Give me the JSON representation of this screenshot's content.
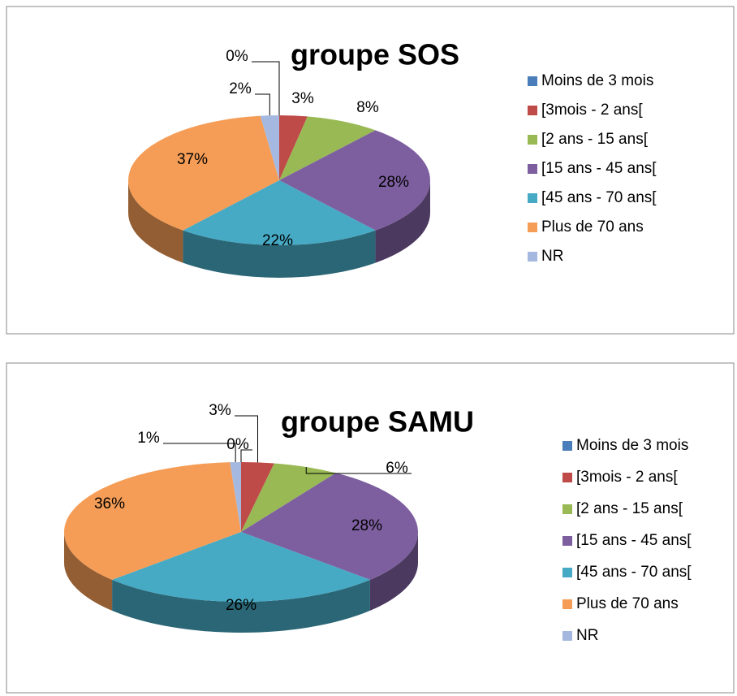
{
  "chart_data": [
    {
      "type": "pie",
      "title": "groupe SOS",
      "categories": [
        "Moins de 3 mois",
        "[3mois - 2 ans[",
        "[2 ans - 15 ans[",
        "[15 ans - 45 ans[",
        "[45 ans - 70 ans[",
        "Plus de 70 ans",
        "NR"
      ],
      "values": [
        0,
        3,
        8,
        28,
        22,
        37,
        2
      ],
      "value_labels": [
        "0%",
        "3%",
        "8%",
        "28%",
        "22%",
        "37%",
        "2%"
      ],
      "colors": [
        "#4a7ebb",
        "#be4b48",
        "#98b954",
        "#7d5fa0",
        "#46aac5",
        "#f59d56",
        "#a5b9e0"
      ],
      "legend": "right"
    },
    {
      "type": "pie",
      "title": "groupe SAMU",
      "categories": [
        "Moins de 3 mois",
        "[3mois - 2 ans[",
        "[2 ans - 15 ans[",
        "[15 ans - 45 ans[",
        "[45 ans - 70 ans[",
        "Plus de 70 ans",
        "NR"
      ],
      "values": [
        0,
        3,
        6,
        28,
        26,
        36,
        1
      ],
      "value_labels": [
        "0%",
        "3%",
        "6%",
        "28%",
        "26%",
        "36%",
        "1%"
      ],
      "colors": [
        "#4a7ebb",
        "#be4b48",
        "#98b954",
        "#7d5fa0",
        "#46aac5",
        "#f59d56",
        "#a5b9e0"
      ],
      "legend": "right"
    }
  ]
}
